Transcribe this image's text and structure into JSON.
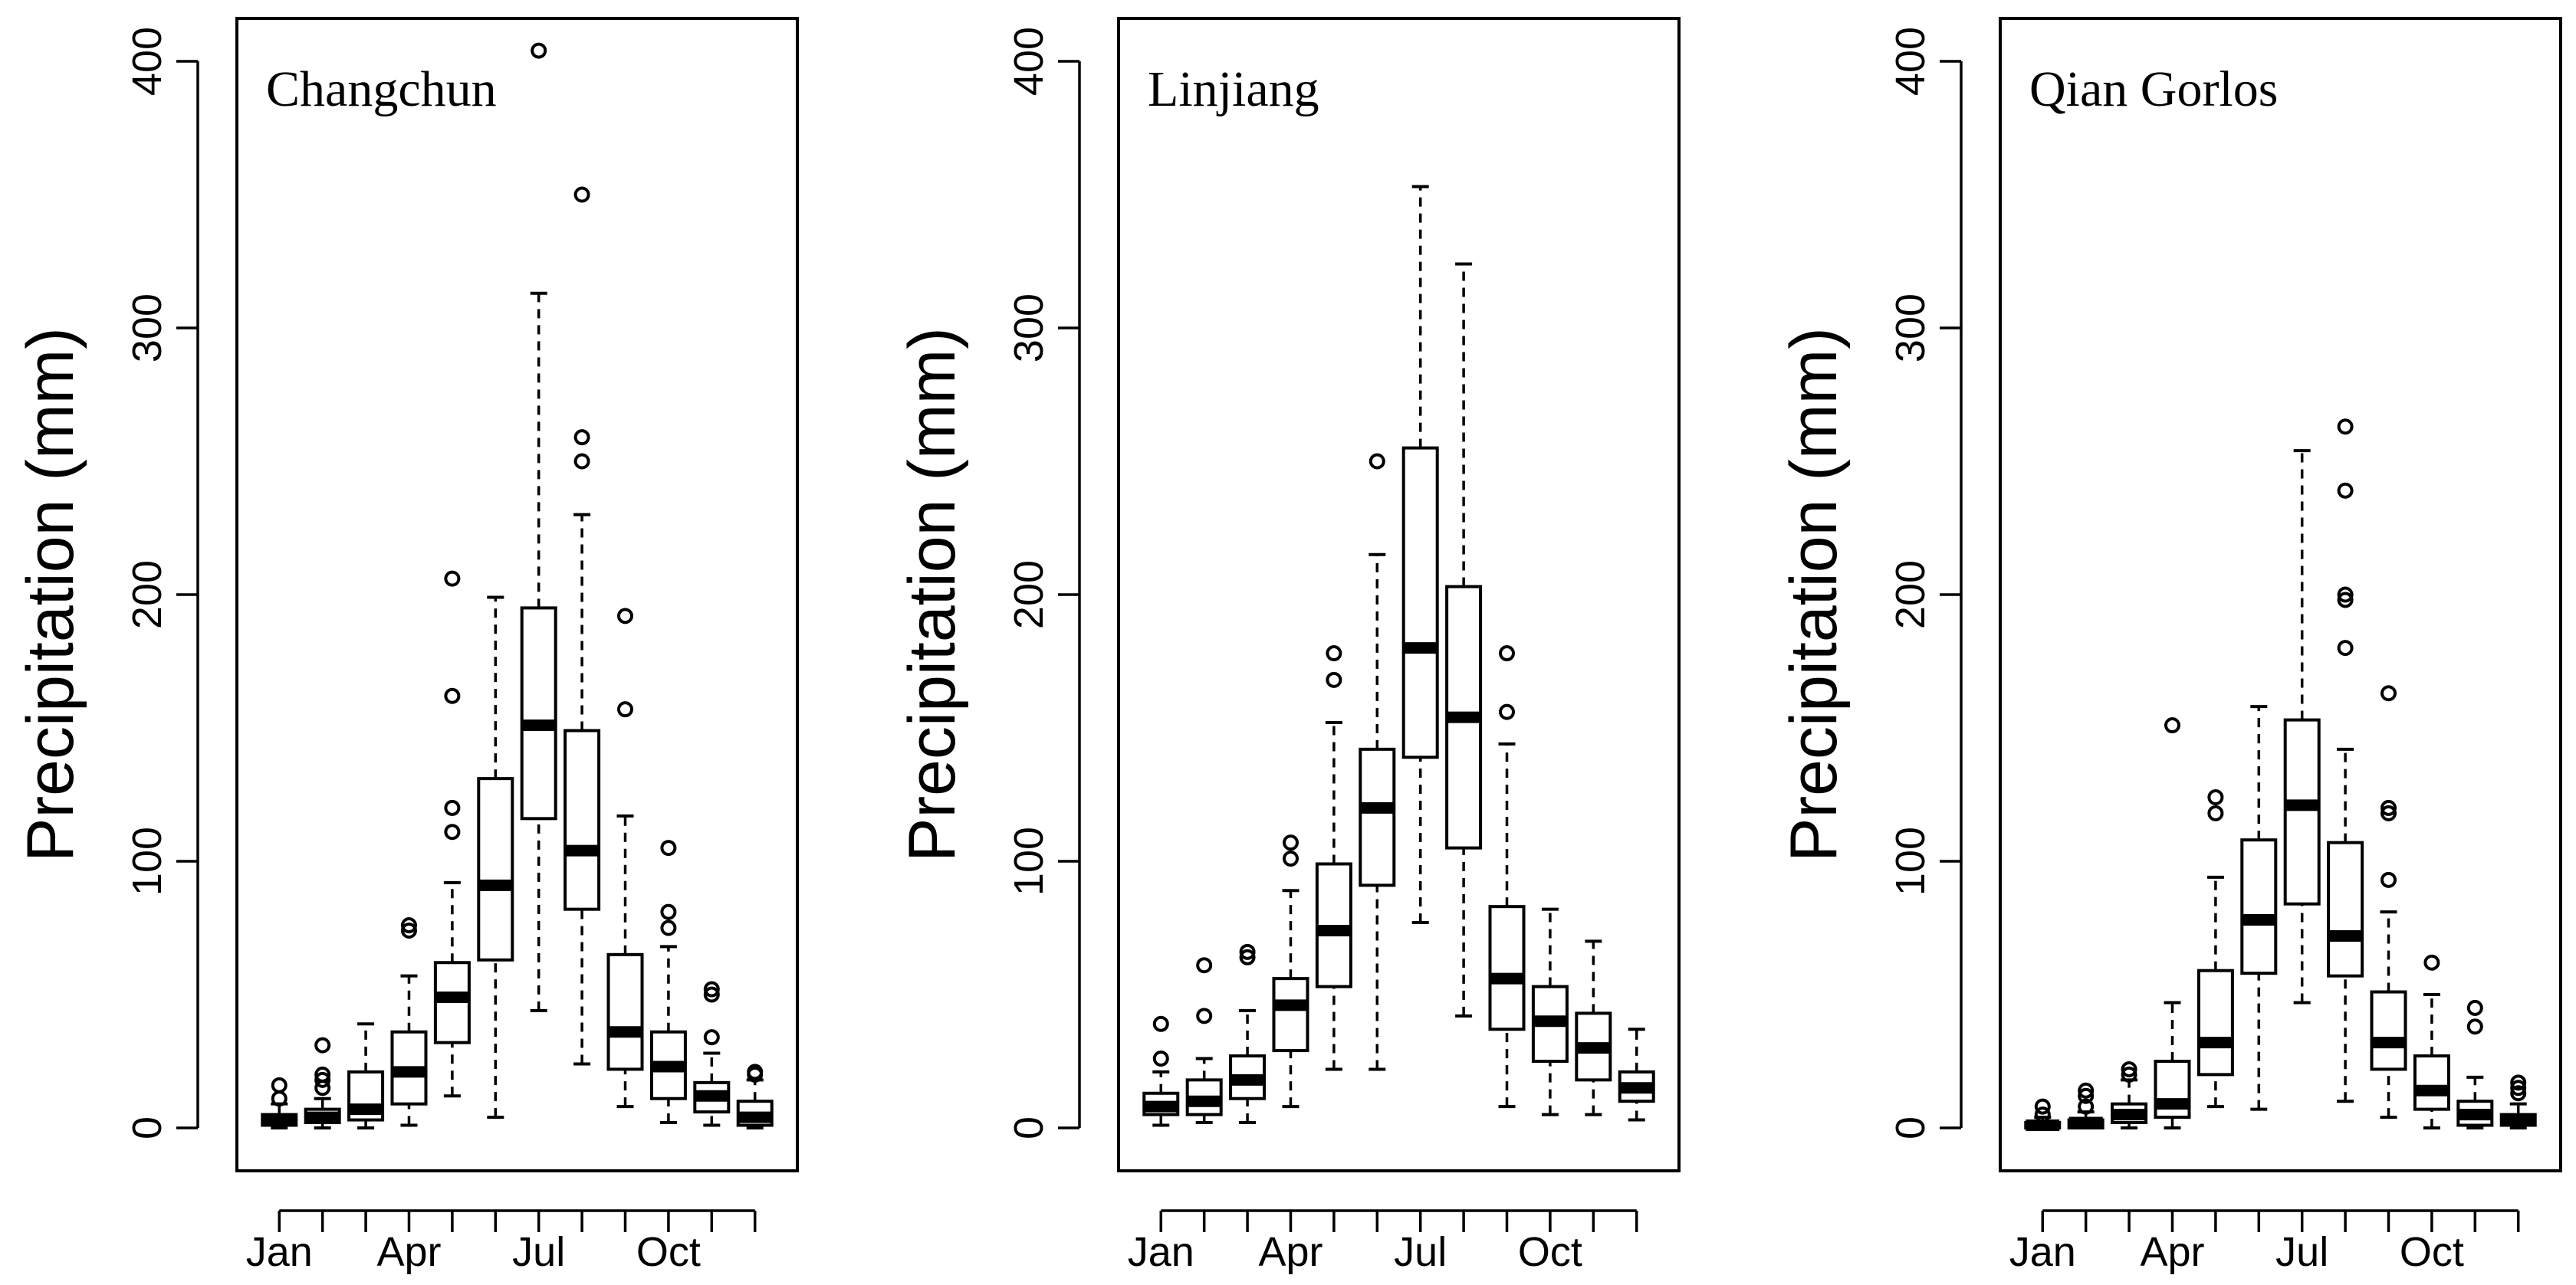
{
  "chart_data": [
    {
      "type": "box",
      "station": "Changchun",
      "ylabel": "Precipitation (mm)",
      "yticks": [
        0,
        100,
        200,
        300,
        400
      ],
      "ylim": [
        -15,
        415
      ],
      "xtick_labels": [
        {
          "month": 1,
          "label": "Jan"
        },
        {
          "month": 4,
          "label": "Apr"
        },
        {
          "month": 7,
          "label": "Jul"
        },
        {
          "month": 10,
          "label": "Oct"
        }
      ],
      "boxes": [
        {
          "month": 1,
          "min": 0,
          "q1": 1,
          "median": 3,
          "q3": 5,
          "max": 9,
          "outliers": [
            11,
            16
          ]
        },
        {
          "month": 2,
          "min": 0,
          "q1": 2,
          "median": 4,
          "q3": 7,
          "max": 11,
          "outliers": [
            15,
            18,
            20,
            31
          ]
        },
        {
          "month": 3,
          "min": 0,
          "q1": 3,
          "median": 7,
          "q3": 21,
          "max": 39,
          "outliers": []
        },
        {
          "month": 4,
          "min": 1,
          "q1": 9,
          "median": 21,
          "q3": 36,
          "max": 57,
          "outliers": [
            74,
            76
          ]
        },
        {
          "month": 5,
          "min": 12,
          "q1": 32,
          "median": 49,
          "q3": 62,
          "max": 92,
          "outliers": [
            111,
            120,
            162,
            206
          ]
        },
        {
          "month": 6,
          "min": 4,
          "q1": 63,
          "median": 91,
          "q3": 131,
          "max": 199,
          "outliers": []
        },
        {
          "month": 7,
          "min": 44,
          "q1": 116,
          "median": 151,
          "q3": 195,
          "max": 313,
          "outliers": [
            404
          ]
        },
        {
          "month": 8,
          "min": 24,
          "q1": 82,
          "median": 104,
          "q3": 149,
          "max": 230,
          "outliers": [
            250,
            259,
            350
          ]
        },
        {
          "month": 9,
          "min": 8,
          "q1": 22,
          "median": 36,
          "q3": 65,
          "max": 117,
          "outliers": [
            157,
            192
          ]
        },
        {
          "month": 10,
          "min": 2,
          "q1": 11,
          "median": 23,
          "q3": 36,
          "max": 68,
          "outliers": [
            75,
            81,
            105
          ]
        },
        {
          "month": 11,
          "min": 1,
          "q1": 6,
          "median": 12,
          "q3": 17,
          "max": 28,
          "outliers": [
            34,
            50,
            52
          ]
        },
        {
          "month": 12,
          "min": 0,
          "q1": 1,
          "median": 4,
          "q3": 10,
          "max": 18,
          "outliers": [
            20,
            21
          ]
        }
      ]
    },
    {
      "type": "box",
      "station": "Linjiang",
      "ylabel": "Precipitation (mm)",
      "yticks": [
        0,
        100,
        200,
        300,
        400
      ],
      "ylim": [
        -15,
        415
      ],
      "xtick_labels": [
        {
          "month": 1,
          "label": "Jan"
        },
        {
          "month": 4,
          "label": "Apr"
        },
        {
          "month": 7,
          "label": "Jul"
        },
        {
          "month": 10,
          "label": "Oct"
        }
      ],
      "boxes": [
        {
          "month": 1,
          "min": 1,
          "q1": 5,
          "median": 8,
          "q3": 13,
          "max": 21,
          "outliers": [
            26,
            39
          ]
        },
        {
          "month": 2,
          "min": 2,
          "q1": 5,
          "median": 10,
          "q3": 18,
          "max": 26,
          "outliers": [
            42,
            61
          ]
        },
        {
          "month": 3,
          "min": 2,
          "q1": 11,
          "median": 18,
          "q3": 27,
          "max": 44,
          "outliers": [
            64,
            66
          ]
        },
        {
          "month": 4,
          "min": 8,
          "q1": 29,
          "median": 46,
          "q3": 56,
          "max": 89,
          "outliers": [
            101,
            107
          ]
        },
        {
          "month": 5,
          "min": 22,
          "q1": 53,
          "median": 74,
          "q3": 99,
          "max": 152,
          "outliers": [
            168,
            178
          ]
        },
        {
          "month": 6,
          "min": 22,
          "q1": 91,
          "median": 120,
          "q3": 142,
          "max": 215,
          "outliers": [
            250
          ]
        },
        {
          "month": 7,
          "min": 77,
          "q1": 139,
          "median": 180,
          "q3": 255,
          "max": 353,
          "outliers": []
        },
        {
          "month": 8,
          "min": 42,
          "q1": 105,
          "median": 154,
          "q3": 203,
          "max": 324,
          "outliers": []
        },
        {
          "month": 9,
          "min": 8,
          "q1": 37,
          "median": 56,
          "q3": 83,
          "max": 144,
          "outliers": [
            156,
            178
          ]
        },
        {
          "month": 10,
          "min": 5,
          "q1": 25,
          "median": 40,
          "q3": 53,
          "max": 82,
          "outliers": []
        },
        {
          "month": 11,
          "min": 5,
          "q1": 18,
          "median": 30,
          "q3": 43,
          "max": 70,
          "outliers": []
        },
        {
          "month": 12,
          "min": 3,
          "q1": 10,
          "median": 15,
          "q3": 21,
          "max": 37,
          "outliers": []
        }
      ]
    },
    {
      "type": "box",
      "station": "Qian Gorlos",
      "ylabel": "Precipitation (mm)",
      "yticks": [
        0,
        100,
        200,
        300,
        400
      ],
      "ylim": [
        -15,
        415
      ],
      "xtick_labels": [
        {
          "month": 1,
          "label": "Jan"
        },
        {
          "month": 4,
          "label": "Apr"
        },
        {
          "month": 7,
          "label": "Jul"
        },
        {
          "month": 10,
          "label": "Oct"
        }
      ],
      "boxes": [
        {
          "month": 1,
          "min": 0,
          "q1": 0,
          "median": 1,
          "q3": 2,
          "max": 4,
          "outliers": [
            5,
            8
          ]
        },
        {
          "month": 2,
          "min": 0,
          "q1": 0,
          "median": 2,
          "q3": 3,
          "max": 6,
          "outliers": [
            8,
            12,
            14
          ]
        },
        {
          "month": 3,
          "min": 0,
          "q1": 2,
          "median": 5,
          "q3": 9,
          "max": 18,
          "outliers": [
            20,
            22
          ]
        },
        {
          "month": 4,
          "min": 0,
          "q1": 4,
          "median": 9,
          "q3": 25,
          "max": 47,
          "outliers": [
            151
          ]
        },
        {
          "month": 5,
          "min": 8,
          "q1": 20,
          "median": 32,
          "q3": 59,
          "max": 94,
          "outliers": [
            118,
            124
          ]
        },
        {
          "month": 6,
          "min": 7,
          "q1": 58,
          "median": 78,
          "q3": 108,
          "max": 158,
          "outliers": []
        },
        {
          "month": 7,
          "min": 47,
          "q1": 84,
          "median": 121,
          "q3": 153,
          "max": 254,
          "outliers": []
        },
        {
          "month": 8,
          "min": 10,
          "q1": 57,
          "median": 72,
          "q3": 107,
          "max": 142,
          "outliers": [
            180,
            198,
            200,
            239,
            263
          ]
        },
        {
          "month": 9,
          "min": 4,
          "q1": 22,
          "median": 32,
          "q3": 51,
          "max": 81,
          "outliers": [
            93,
            118,
            120,
            163
          ]
        },
        {
          "month": 10,
          "min": 0,
          "q1": 7,
          "median": 14,
          "q3": 27,
          "max": 50,
          "outliers": [
            62
          ]
        },
        {
          "month": 11,
          "min": 0,
          "q1": 1,
          "median": 5,
          "q3": 10,
          "max": 19,
          "outliers": [
            38,
            45
          ]
        },
        {
          "month": 12,
          "min": 0,
          "q1": 1,
          "median": 3,
          "q3": 5,
          "max": 9,
          "outliers": [
            13,
            15,
            17
          ]
        }
      ]
    }
  ]
}
